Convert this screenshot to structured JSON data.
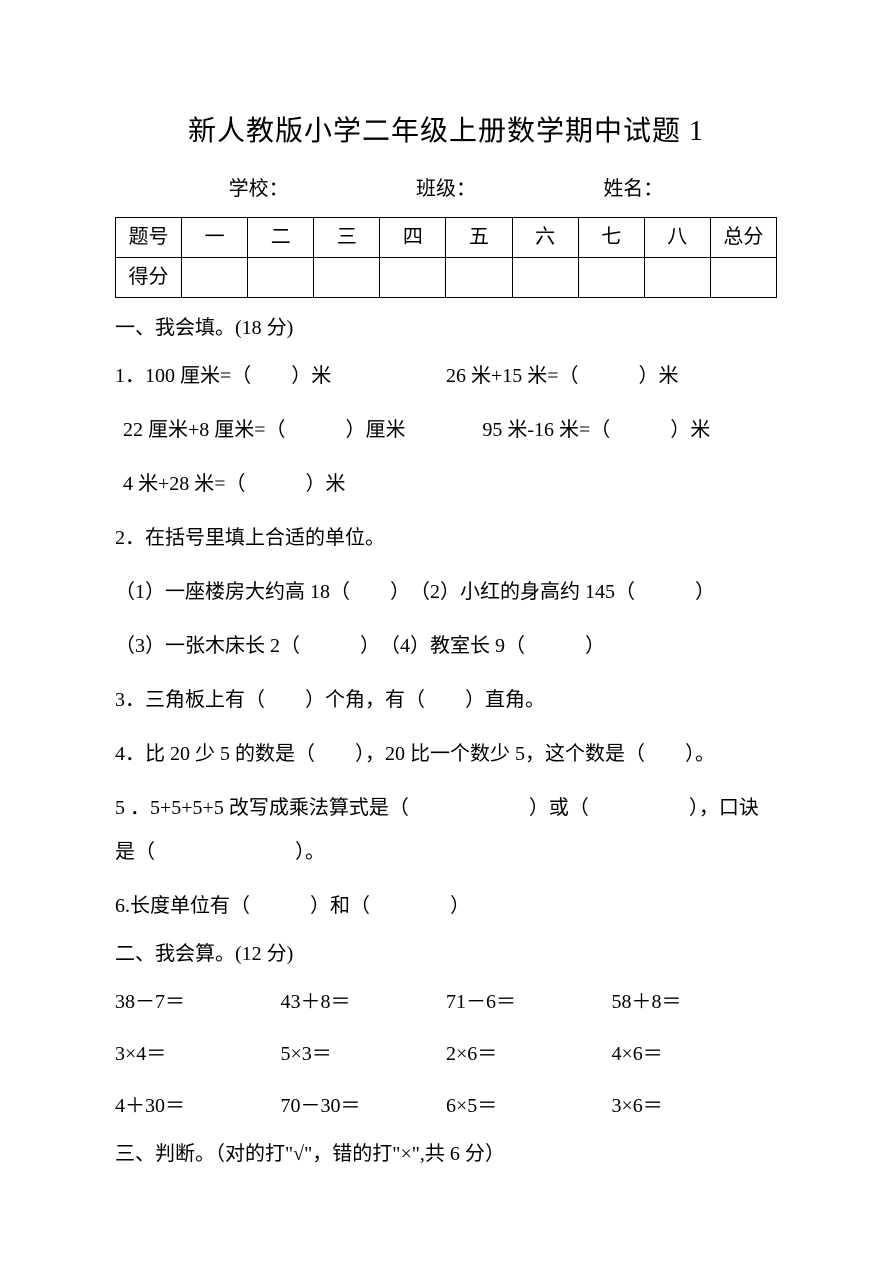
{
  "title": "新人教版小学二年级上册数学期中试题 1",
  "info": {
    "school_label": "学校：",
    "class_label": "班级：",
    "name_label": "姓名："
  },
  "table": {
    "row1": [
      "题号",
      "一",
      "二",
      "三",
      "四",
      "五",
      "六",
      "七",
      "八",
      "总分"
    ],
    "row2_label": "得分"
  },
  "section1": {
    "heading": "一、我会填。(18 分)",
    "q1a": "1．100 厘米=（　　）米",
    "q1b": "26 米+15 米=（　　　）米",
    "q1c": "22 厘米+8 厘米=（　　　）厘米",
    "q1d": "95 米-16 米=（　　　）米",
    "q1e": "4 米+28 米=（　　　）米",
    "q2": "2．在括号里填上合适的单位。",
    "q2a": "（1）一座楼房大约高 18（　　）　（2）小红的身高约 145（　　　）",
    "q2b": "（3）一张木床长 2（　　　）　（4）教室长 9（　　　）",
    "q3": "3．三角板上有（　　）个角，有（　　）直角。",
    "q4": "4．比 20 少 5 的数是（　　），20 比一个数少 5，这个数是（　　）。",
    "q5": "5 ．5+5+5+5 改写成乘法算式是（　　　　　　）或（　　　　　），口诀是（　　　　　　　）。",
    "q6": "6.长度单位有（　　　）和（　　　　）"
  },
  "section2": {
    "heading": "二、我会算。(12 分)",
    "row1": [
      "38－7＝",
      "43＋8＝",
      "71－6＝",
      "58＋8＝"
    ],
    "row2": [
      "3×4＝",
      "5×3＝",
      "2×6＝",
      "4×6＝"
    ],
    "row3": [
      "4＋30＝",
      "70－30＝",
      "6×5＝",
      "3×6＝"
    ]
  },
  "section3": {
    "heading": "三、判断。（对的打\"√\"，错的打\"×\",共 6 分）"
  }
}
